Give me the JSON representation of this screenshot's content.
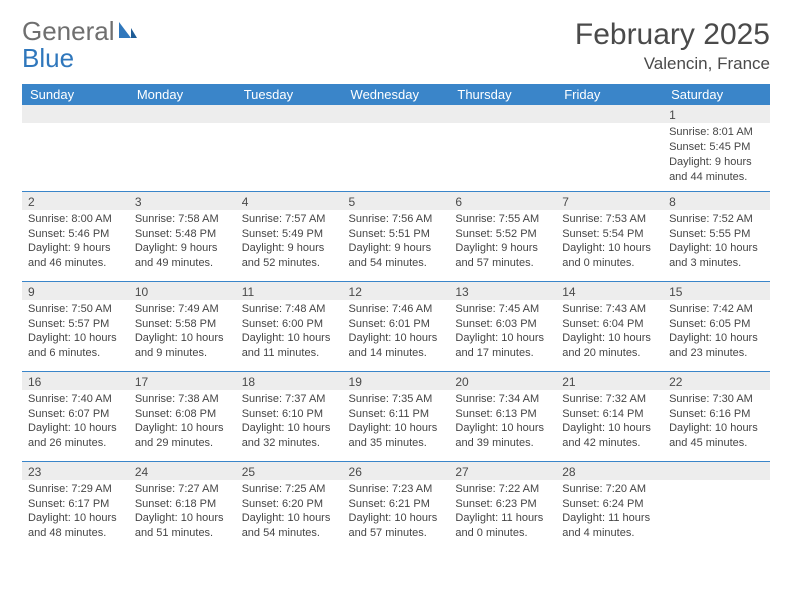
{
  "brand": {
    "part1": "General",
    "part2": "Blue"
  },
  "title": "February 2025",
  "location": "Valencin, France",
  "colors": {
    "header_bg": "#3a85c9",
    "header_text": "#ffffff",
    "rule": "#3a85c9",
    "daynum_bg": "#ededed",
    "text": "#454545",
    "brand_gray": "#6f6f6f",
    "brand_blue": "#2f77bc"
  },
  "weekdays": [
    "Sunday",
    "Monday",
    "Tuesday",
    "Wednesday",
    "Thursday",
    "Friday",
    "Saturday"
  ],
  "weeks": [
    [
      null,
      null,
      null,
      null,
      null,
      null,
      {
        "n": "1",
        "sr": "Sunrise: 8:01 AM",
        "ss": "Sunset: 5:45 PM",
        "d1": "Daylight: 9 hours",
        "d2": "and 44 minutes."
      }
    ],
    [
      {
        "n": "2",
        "sr": "Sunrise: 8:00 AM",
        "ss": "Sunset: 5:46 PM",
        "d1": "Daylight: 9 hours",
        "d2": "and 46 minutes."
      },
      {
        "n": "3",
        "sr": "Sunrise: 7:58 AM",
        "ss": "Sunset: 5:48 PM",
        "d1": "Daylight: 9 hours",
        "d2": "and 49 minutes."
      },
      {
        "n": "4",
        "sr": "Sunrise: 7:57 AM",
        "ss": "Sunset: 5:49 PM",
        "d1": "Daylight: 9 hours",
        "d2": "and 52 minutes."
      },
      {
        "n": "5",
        "sr": "Sunrise: 7:56 AM",
        "ss": "Sunset: 5:51 PM",
        "d1": "Daylight: 9 hours",
        "d2": "and 54 minutes."
      },
      {
        "n": "6",
        "sr": "Sunrise: 7:55 AM",
        "ss": "Sunset: 5:52 PM",
        "d1": "Daylight: 9 hours",
        "d2": "and 57 minutes."
      },
      {
        "n": "7",
        "sr": "Sunrise: 7:53 AM",
        "ss": "Sunset: 5:54 PM",
        "d1": "Daylight: 10 hours",
        "d2": "and 0 minutes."
      },
      {
        "n": "8",
        "sr": "Sunrise: 7:52 AM",
        "ss": "Sunset: 5:55 PM",
        "d1": "Daylight: 10 hours",
        "d2": "and 3 minutes."
      }
    ],
    [
      {
        "n": "9",
        "sr": "Sunrise: 7:50 AM",
        "ss": "Sunset: 5:57 PM",
        "d1": "Daylight: 10 hours",
        "d2": "and 6 minutes."
      },
      {
        "n": "10",
        "sr": "Sunrise: 7:49 AM",
        "ss": "Sunset: 5:58 PM",
        "d1": "Daylight: 10 hours",
        "d2": "and 9 minutes."
      },
      {
        "n": "11",
        "sr": "Sunrise: 7:48 AM",
        "ss": "Sunset: 6:00 PM",
        "d1": "Daylight: 10 hours",
        "d2": "and 11 minutes."
      },
      {
        "n": "12",
        "sr": "Sunrise: 7:46 AM",
        "ss": "Sunset: 6:01 PM",
        "d1": "Daylight: 10 hours",
        "d2": "and 14 minutes."
      },
      {
        "n": "13",
        "sr": "Sunrise: 7:45 AM",
        "ss": "Sunset: 6:03 PM",
        "d1": "Daylight: 10 hours",
        "d2": "and 17 minutes."
      },
      {
        "n": "14",
        "sr": "Sunrise: 7:43 AM",
        "ss": "Sunset: 6:04 PM",
        "d1": "Daylight: 10 hours",
        "d2": "and 20 minutes."
      },
      {
        "n": "15",
        "sr": "Sunrise: 7:42 AM",
        "ss": "Sunset: 6:05 PM",
        "d1": "Daylight: 10 hours",
        "d2": "and 23 minutes."
      }
    ],
    [
      {
        "n": "16",
        "sr": "Sunrise: 7:40 AM",
        "ss": "Sunset: 6:07 PM",
        "d1": "Daylight: 10 hours",
        "d2": "and 26 minutes."
      },
      {
        "n": "17",
        "sr": "Sunrise: 7:38 AM",
        "ss": "Sunset: 6:08 PM",
        "d1": "Daylight: 10 hours",
        "d2": "and 29 minutes."
      },
      {
        "n": "18",
        "sr": "Sunrise: 7:37 AM",
        "ss": "Sunset: 6:10 PM",
        "d1": "Daylight: 10 hours",
        "d2": "and 32 minutes."
      },
      {
        "n": "19",
        "sr": "Sunrise: 7:35 AM",
        "ss": "Sunset: 6:11 PM",
        "d1": "Daylight: 10 hours",
        "d2": "and 35 minutes."
      },
      {
        "n": "20",
        "sr": "Sunrise: 7:34 AM",
        "ss": "Sunset: 6:13 PM",
        "d1": "Daylight: 10 hours",
        "d2": "and 39 minutes."
      },
      {
        "n": "21",
        "sr": "Sunrise: 7:32 AM",
        "ss": "Sunset: 6:14 PM",
        "d1": "Daylight: 10 hours",
        "d2": "and 42 minutes."
      },
      {
        "n": "22",
        "sr": "Sunrise: 7:30 AM",
        "ss": "Sunset: 6:16 PM",
        "d1": "Daylight: 10 hours",
        "d2": "and 45 minutes."
      }
    ],
    [
      {
        "n": "23",
        "sr": "Sunrise: 7:29 AM",
        "ss": "Sunset: 6:17 PM",
        "d1": "Daylight: 10 hours",
        "d2": "and 48 minutes."
      },
      {
        "n": "24",
        "sr": "Sunrise: 7:27 AM",
        "ss": "Sunset: 6:18 PM",
        "d1": "Daylight: 10 hours",
        "d2": "and 51 minutes."
      },
      {
        "n": "25",
        "sr": "Sunrise: 7:25 AM",
        "ss": "Sunset: 6:20 PM",
        "d1": "Daylight: 10 hours",
        "d2": "and 54 minutes."
      },
      {
        "n": "26",
        "sr": "Sunrise: 7:23 AM",
        "ss": "Sunset: 6:21 PM",
        "d1": "Daylight: 10 hours",
        "d2": "and 57 minutes."
      },
      {
        "n": "27",
        "sr": "Sunrise: 7:22 AM",
        "ss": "Sunset: 6:23 PM",
        "d1": "Daylight: 11 hours",
        "d2": "and 0 minutes."
      },
      {
        "n": "28",
        "sr": "Sunrise: 7:20 AM",
        "ss": "Sunset: 6:24 PM",
        "d1": "Daylight: 11 hours",
        "d2": "and 4 minutes."
      },
      null
    ]
  ]
}
